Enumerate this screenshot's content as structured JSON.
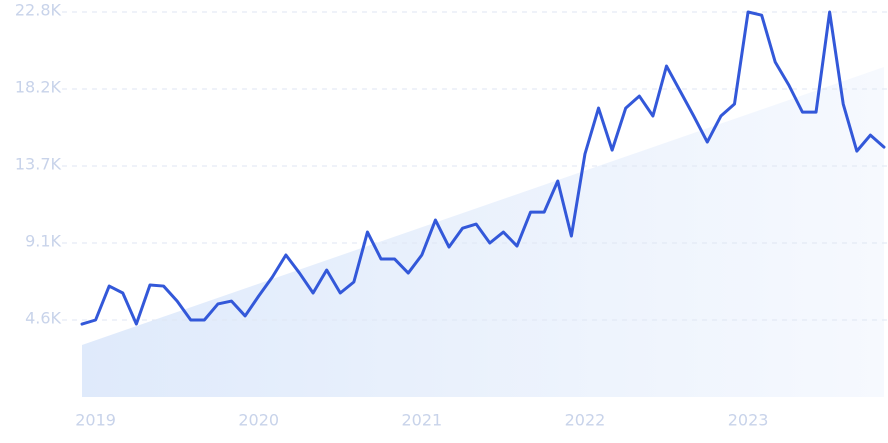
{
  "chart_data": {
    "type": "line",
    "categories": [
      null,
      "2019",
      null,
      null,
      null,
      null,
      null,
      null,
      null,
      null,
      null,
      null,
      null,
      "2020",
      null,
      null,
      null,
      null,
      null,
      null,
      null,
      null,
      null,
      null,
      null,
      "2021",
      null,
      null,
      null,
      null,
      null,
      null,
      null,
      null,
      null,
      null,
      null,
      "2022",
      null,
      null,
      null,
      null,
      null,
      null,
      null,
      null,
      null,
      null,
      null,
      "2023",
      null,
      null,
      null,
      null,
      null,
      null,
      null,
      null,
      null,
      null
    ],
    "values": [
      4320,
      4560,
      6570,
      6160,
      4320,
      6630,
      6570,
      5680,
      4560,
      4560,
      5510,
      5680,
      4800,
      5980,
      7100,
      8410,
      7340,
      6160,
      7520,
      6160,
      6810,
      9770,
      8170,
      8170,
      7340,
      8410,
      10480,
      8880,
      10000,
      10240,
      9120,
      9770,
      8940,
      10950,
      10950,
      12790,
      9530,
      14390,
      17110,
      14620,
      17110,
      17820,
      16640,
      19600,
      18120,
      16640,
      15100,
      16640,
      17350,
      22800,
      22610,
      19830,
      18470,
      16870,
      16870,
      22800,
      17350,
      14560,
      15510,
      14800
    ],
    "color": "#3358d9",
    "trend": [
      3080,
      19540
    ],
    "ylim": [
      0,
      22800
    ],
    "yticks": [
      {
        "value": 4560,
        "label": "4.6K"
      },
      {
        "value": 9120,
        "label": "9.1K"
      },
      {
        "value": 13680,
        "label": "13.7K"
      },
      {
        "value": 18240,
        "label": "18.2K"
      },
      {
        "value": 22800,
        "label": "22.8K"
      }
    ],
    "grid": true
  }
}
